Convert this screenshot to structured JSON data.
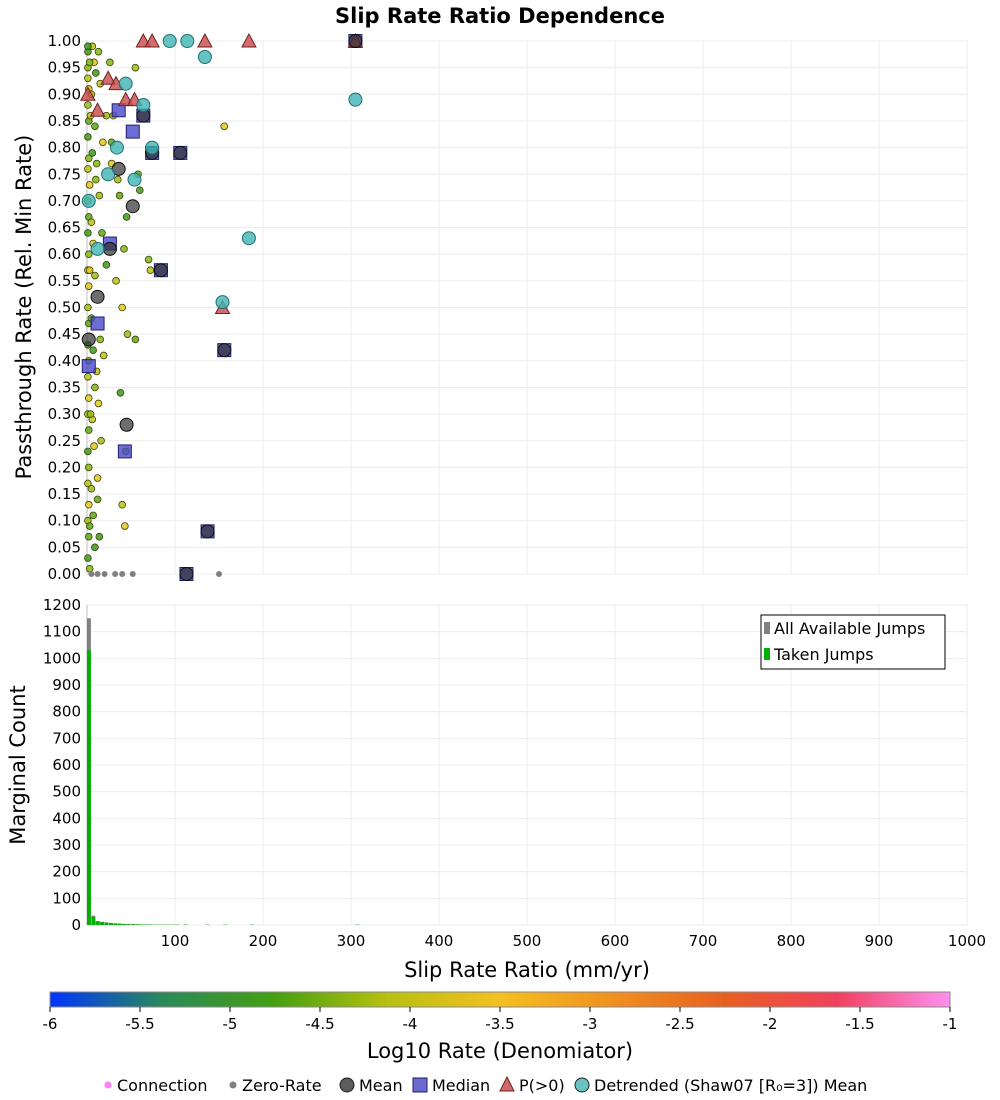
{
  "chart_data": [
    {
      "type": "scatter",
      "title": "Slip Rate Ratio Dependence",
      "ylabel": "Passthrough Rate (Rel. Min Rate)",
      "xlim": [
        0,
        1000
      ],
      "ylim": [
        0,
        1
      ],
      "yticks": [
        "0.00",
        "0.05",
        "0.10",
        "0.15",
        "0.20",
        "0.25",
        "0.30",
        "0.35",
        "0.40",
        "0.45",
        "0.50",
        "0.55",
        "0.60",
        "0.65",
        "0.70",
        "0.75",
        "0.80",
        "0.85",
        "0.90",
        "0.95",
        "1.00"
      ],
      "grid": true,
      "series": [
        {
          "name": "Mean",
          "color": "#3a3a3a",
          "points": [
            [
              26,
              0.61
            ],
            [
              36,
              0.76
            ],
            [
              12,
              0.52
            ],
            [
              2,
              0.44
            ],
            [
              45,
              0.28
            ],
            [
              52,
              0.69
            ],
            [
              64,
              0.86
            ],
            [
              74,
              0.79
            ],
            [
              84,
              0.57
            ],
            [
              106,
              0.79
            ],
            [
              137,
              0.08
            ],
            [
              113,
              0
            ],
            [
              156,
              0.42
            ],
            [
              305,
              1
            ]
          ]
        },
        {
          "name": "Median",
          "color": "#4040c0",
          "points": [
            [
              26,
              0.62
            ],
            [
              36,
              0.87
            ],
            [
              52,
              0.83
            ],
            [
              64,
              0.86
            ],
            [
              74,
              0.79
            ],
            [
              84,
              0.57
            ],
            [
              106,
              0.79
            ],
            [
              12,
              0.47
            ],
            [
              2,
              0.39
            ],
            [
              43,
              0.23
            ],
            [
              137,
              0.08
            ],
            [
              156,
              0.42
            ],
            [
              113,
              0
            ],
            [
              305,
              1
            ]
          ]
        },
        {
          "name": "P(>0)",
          "color": "#c84040",
          "points": [
            [
              1,
              0.9
            ],
            [
              12,
              0.87
            ],
            [
              24,
              0.93
            ],
            [
              33,
              0.92
            ],
            [
              44,
              0.89
            ],
            [
              54,
              0.89
            ],
            [
              64,
              1
            ],
            [
              74,
              1
            ],
            [
              134,
              1
            ],
            [
              154,
              0.5
            ],
            [
              184,
              1
            ],
            [
              305,
              1
            ]
          ]
        },
        {
          "name": "Detrended (Shaw07 [R₀=3]) Mean",
          "color": "#40b4b4",
          "points": [
            [
              2,
              0.7
            ],
            [
              12,
              0.61
            ],
            [
              24,
              0.75
            ],
            [
              34,
              0.8
            ],
            [
              44,
              0.92
            ],
            [
              54,
              0.74
            ],
            [
              64,
              0.88
            ],
            [
              74,
              0.8
            ],
            [
              94,
              1
            ],
            [
              114,
              1
            ],
            [
              134,
              0.97
            ],
            [
              154,
              0.51
            ],
            [
              184,
              0.63
            ],
            [
              305,
              0.89
            ]
          ]
        },
        {
          "name": "Zero-Rate",
          "color": "#808080",
          "points": [
            [
              5,
              0
            ],
            [
              12,
              0
            ],
            [
              20,
              0
            ],
            [
              32,
              0
            ],
            [
              40,
              0
            ],
            [
              52,
              0
            ],
            [
              150,
              0
            ]
          ]
        },
        {
          "name": "Connection",
          "color": "#ff66ff",
          "points": [
            [
              1,
              0.98
            ],
            [
              1,
              0.95
            ],
            [
              1,
              0.93
            ],
            [
              2,
              0.91
            ],
            [
              1,
              0.88
            ],
            [
              2,
              0.85
            ],
            [
              1,
              0.82
            ],
            [
              2,
              0.78
            ],
            [
              1,
              0.76
            ],
            [
              3,
              0.73
            ],
            [
              1,
              0.7
            ],
            [
              2,
              0.67
            ],
            [
              1,
              0.64
            ],
            [
              2,
              0.6
            ],
            [
              1,
              0.57
            ],
            [
              2,
              0.54
            ],
            [
              1,
              0.5
            ],
            [
              2,
              0.47
            ],
            [
              1,
              0.43
            ],
            [
              2,
              0.4
            ],
            [
              1,
              0.37
            ],
            [
              2,
              0.33
            ],
            [
              1,
              0.3
            ],
            [
              2,
              0.27
            ],
            [
              1,
              0.23
            ],
            [
              2,
              0.2
            ],
            [
              1,
              0.17
            ],
            [
              2,
              0.13
            ],
            [
              1,
              0.1
            ],
            [
              2,
              0.07
            ],
            [
              1,
              0.03
            ],
            [
              3,
              0.01
            ],
            [
              6,
              0.99
            ],
            [
              8,
              0.96
            ],
            [
              5,
              0.9
            ],
            [
              9,
              0.84
            ],
            [
              6,
              0.79
            ],
            [
              10,
              0.74
            ],
            [
              5,
              0.66
            ],
            [
              7,
              0.62
            ],
            [
              9,
              0.56
            ],
            [
              5,
              0.48
            ],
            [
              7,
              0.42
            ],
            [
              9,
              0.35
            ],
            [
              6,
              0.29
            ],
            [
              8,
              0.24
            ],
            [
              5,
              0.16
            ],
            [
              7,
              0.11
            ],
            [
              9,
              0.05
            ],
            [
              13,
              0.98
            ],
            [
              15,
              0.92
            ],
            [
              18,
              0.81
            ],
            [
              14,
              0.71
            ],
            [
              17,
              0.64
            ],
            [
              22,
              0.58
            ],
            [
              15,
              0.44
            ],
            [
              19,
              0.41
            ],
            [
              13,
              0.32
            ],
            [
              16,
              0.25
            ],
            [
              12,
              0.14
            ],
            [
              14,
              0.07
            ],
            [
              26,
              0.96
            ],
            [
              30,
              0.86
            ],
            [
              28,
              0.77
            ],
            [
              35,
              0.74
            ],
            [
              37,
              0.71
            ],
            [
              45,
              0.67
            ],
            [
              42,
              0.61
            ],
            [
              33,
              0.55
            ],
            [
              40,
              0.5
            ],
            [
              46,
              0.45
            ],
            [
              55,
              0.44
            ],
            [
              38,
              0.34
            ],
            [
              44,
              0.23
            ],
            [
              40,
              0.13
            ],
            [
              43,
              0.09
            ],
            [
              55,
              0.95
            ],
            [
              58,
              0.75
            ],
            [
              60,
              0.72
            ],
            [
              70,
              0.59
            ],
            [
              72,
              0.57
            ],
            [
              156,
              0.84
            ],
            [
              22,
              0.86
            ],
            [
              28,
              0.81
            ],
            [
              1,
              0.99
            ],
            [
              3,
              0.96
            ],
            [
              4,
              0.86
            ],
            [
              3,
              0.57
            ],
            [
              4,
              0.3
            ],
            [
              3,
              0.09
            ],
            [
              10,
              0.94
            ],
            [
              11,
              0.77
            ],
            [
              11,
              0.38
            ],
            [
              12,
              0.18
            ]
          ]
        }
      ]
    },
    {
      "type": "bar",
      "ylabel": "Marginal Count",
      "xlabel": "Slip Rate Ratio (mm/yr)",
      "xlim": [
        0,
        1000
      ],
      "ylim": [
        0,
        1200
      ],
      "xticks": [
        "100",
        "200",
        "300",
        "400",
        "500",
        "600",
        "700",
        "800",
        "900",
        "1000"
      ],
      "yticks": [
        "0",
        "100",
        "200",
        "300",
        "400",
        "500",
        "600",
        "700",
        "800",
        "900",
        "1000",
        "1100",
        "1200"
      ],
      "grid": true,
      "legend_position": "top-right",
      "bin_width": 5,
      "series": [
        {
          "name": "All Available Jumps",
          "color": "#808080",
          "bins": [
            [
              0,
              1150
            ],
            [
              5,
              35
            ],
            [
              10,
              15
            ],
            [
              15,
              12
            ],
            [
              20,
              10
            ],
            [
              25,
              8
            ],
            [
              30,
              6
            ],
            [
              35,
              5
            ],
            [
              40,
              4
            ],
            [
              45,
              4
            ],
            [
              50,
              3
            ],
            [
              55,
              3
            ],
            [
              60,
              2
            ],
            [
              65,
              2
            ],
            [
              70,
              2
            ],
            [
              75,
              1
            ],
            [
              80,
              1
            ],
            [
              85,
              1
            ],
            [
              90,
              1
            ],
            [
              95,
              1
            ],
            [
              100,
              1
            ],
            [
              110,
              2
            ],
            [
              135,
              1
            ],
            [
              155,
              1
            ],
            [
              185,
              1
            ],
            [
              305,
              1
            ]
          ]
        },
        {
          "name": "Taken Jumps",
          "color": "#00b000",
          "bins": [
            [
              0,
              1030
            ],
            [
              5,
              30
            ],
            [
              10,
              13
            ],
            [
              15,
              11
            ],
            [
              20,
              9
            ],
            [
              25,
              7
            ],
            [
              30,
              6
            ],
            [
              35,
              5
            ],
            [
              40,
              4
            ],
            [
              45,
              3
            ],
            [
              50,
              3
            ],
            [
              55,
              2
            ],
            [
              60,
              2
            ],
            [
              65,
              2
            ],
            [
              70,
              1
            ],
            [
              75,
              1
            ],
            [
              80,
              1
            ],
            [
              85,
              1
            ],
            [
              90,
              1
            ],
            [
              95,
              1
            ],
            [
              100,
              1
            ],
            [
              110,
              1
            ],
            [
              135,
              1
            ],
            [
              155,
              1
            ],
            [
              185,
              1
            ],
            [
              305,
              1
            ]
          ]
        }
      ]
    },
    {
      "type": "colorbar",
      "xlabel": "Log10 Rate (Denomiator)",
      "range": [
        -6,
        -1
      ],
      "ticks": [
        "-6",
        "-5.5",
        "-5",
        "-4.5",
        "-4",
        "-3.5",
        "-3",
        "-2.5",
        "-2",
        "-1.5",
        "-1"
      ],
      "colors": [
        "#0033ff",
        "#2a8a5a",
        "#44a010",
        "#b8c010",
        "#f4c020",
        "#f09020",
        "#e86020",
        "#f04060",
        "#ff90f0"
      ]
    }
  ],
  "legend": [
    {
      "label": "Connection",
      "marker": "dot",
      "color": "#ff80ff"
    },
    {
      "label": "Zero-Rate",
      "marker": "dot",
      "color": "#808080"
    },
    {
      "label": "Mean",
      "marker": "circle",
      "color": "#404040"
    },
    {
      "label": "Median",
      "marker": "square",
      "color": "#5050c8"
    },
    {
      "label": "P(>0)",
      "marker": "triangle",
      "color": "#c85050"
    },
    {
      "label": "Detrended (Shaw07 [R₀=3]) Mean",
      "marker": "circle",
      "color": "#50b8b8"
    }
  ]
}
